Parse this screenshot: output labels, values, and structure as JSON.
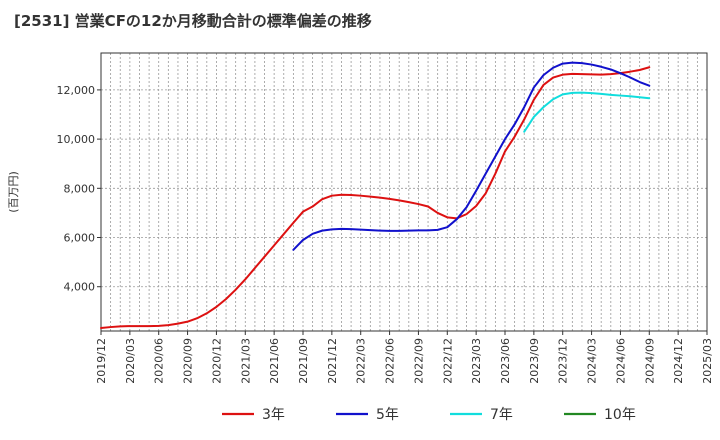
{
  "chart_data": {
    "type": "line",
    "title": "[2531]  営業CFの12か月移動合計の標準偏差の推移",
    "ylabel": "(百万円)",
    "xlabel": "",
    "ylim": [
      2200,
      13500
    ],
    "xlim": [
      "2019-12",
      "2025-03"
    ],
    "yticks": [
      4000,
      6000,
      8000,
      10000,
      12000
    ],
    "ytick_labels": [
      "4,000",
      "6,000",
      "8,000",
      "10,000",
      "12,000"
    ],
    "xticks": [
      "2019/12",
      "2020/03",
      "2020/06",
      "2020/09",
      "2020/12",
      "2021/03",
      "2021/06",
      "2021/09",
      "2021/12",
      "2022/03",
      "2022/06",
      "2022/09",
      "2022/12",
      "2023/03",
      "2023/06",
      "2023/09",
      "2023/12",
      "2024/03",
      "2024/06",
      "2024/09",
      "2024/12",
      "2025/03"
    ],
    "grid": true,
    "legend_position": "bottom",
    "series": [
      {
        "name": "3年",
        "color": "#dd1111",
        "x": [
          "2019-12",
          "2020-01",
          "2020-02",
          "2020-03",
          "2020-04",
          "2020-05",
          "2020-06",
          "2020-07",
          "2020-08",
          "2020-09",
          "2020-10",
          "2020-11",
          "2020-12",
          "2021-01",
          "2021-02",
          "2021-03",
          "2021-04",
          "2021-05",
          "2021-06",
          "2021-07",
          "2021-08",
          "2021-09",
          "2021-10",
          "2021-11",
          "2021-12",
          "2022-01",
          "2022-02",
          "2022-03",
          "2022-04",
          "2022-05",
          "2022-06",
          "2022-07",
          "2022-08",
          "2022-09",
          "2022-10",
          "2022-11",
          "2022-12",
          "2023-01",
          "2023-02",
          "2023-03",
          "2023-04",
          "2023-05",
          "2023-06",
          "2023-07",
          "2023-08",
          "2023-09",
          "2023-10",
          "2023-11",
          "2023-12",
          "2024-01",
          "2024-02",
          "2024-03",
          "2024-04",
          "2024-05",
          "2024-06",
          "2024-07",
          "2024-08",
          "2024-09"
        ],
        "y": [
          2320,
          2360,
          2390,
          2400,
          2400,
          2400,
          2410,
          2440,
          2500,
          2580,
          2720,
          2920,
          3180,
          3500,
          3880,
          4300,
          4760,
          5220,
          5680,
          6140,
          6600,
          7050,
          7260,
          7560,
          7700,
          7740,
          7730,
          7700,
          7660,
          7620,
          7570,
          7510,
          7440,
          7360,
          7260,
          7000,
          6820,
          6780,
          6950,
          7280,
          7800,
          8600,
          9500,
          10100,
          10800,
          11600,
          12200,
          12500,
          12620,
          12650,
          12640,
          12630,
          12620,
          12640,
          12680,
          12740,
          12810,
          12920
        ]
      },
      {
        "name": "5年",
        "color": "#1111cc",
        "x": [
          "2021-08",
          "2021-09",
          "2021-10",
          "2021-11",
          "2021-12",
          "2022-01",
          "2022-02",
          "2022-03",
          "2022-04",
          "2022-05",
          "2022-06",
          "2022-07",
          "2022-08",
          "2022-09",
          "2022-10",
          "2022-11",
          "2022-12",
          "2023-01",
          "2023-02",
          "2023-03",
          "2023-04",
          "2023-05",
          "2023-06",
          "2023-07",
          "2023-08",
          "2023-09",
          "2023-10",
          "2023-11",
          "2023-12",
          "2024-01",
          "2024-02",
          "2024-03",
          "2024-04",
          "2024-05",
          "2024-06",
          "2024-07",
          "2024-08",
          "2024-09"
        ],
        "y": [
          5500,
          5900,
          6150,
          6280,
          6330,
          6350,
          6340,
          6320,
          6300,
          6280,
          6270,
          6270,
          6280,
          6290,
          6290,
          6310,
          6420,
          6750,
          7230,
          7900,
          8600,
          9300,
          10000,
          10600,
          11300,
          12100,
          12600,
          12900,
          13070,
          13110,
          13090,
          13030,
          12940,
          12830,
          12680,
          12510,
          12320,
          12170
        ]
      },
      {
        "name": "7年",
        "color": "#11dddd",
        "x": [
          "2023-08",
          "2023-09",
          "2023-10",
          "2023-11",
          "2023-12",
          "2024-01",
          "2024-02",
          "2024-03",
          "2024-04",
          "2024-05",
          "2024-06",
          "2024-07",
          "2024-08",
          "2024-09"
        ],
        "y": [
          10300,
          10900,
          11300,
          11620,
          11820,
          11880,
          11890,
          11870,
          11840,
          11800,
          11770,
          11740,
          11700,
          11660
        ]
      },
      {
        "name": "10年",
        "color": "#228822",
        "x": [],
        "y": []
      }
    ]
  }
}
